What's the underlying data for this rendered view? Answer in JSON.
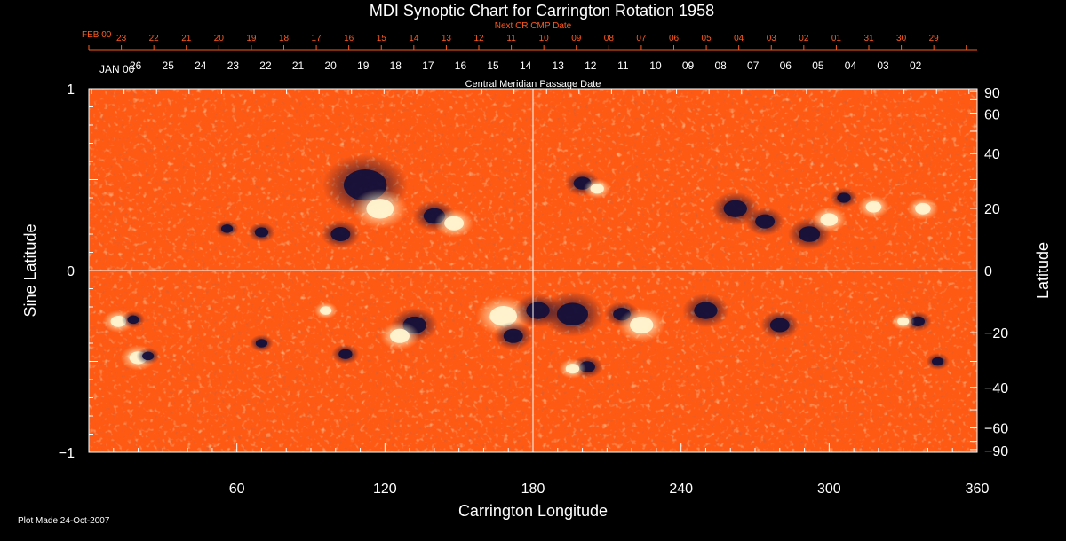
{
  "chart_data": {
    "type": "heatmap",
    "title": "MDI Synoptic Chart for Carrington Rotation 1958",
    "xlabel": "Carrington Longitude",
    "ylabel_left": "Sine Latitude",
    "ylabel_right": "Latitude",
    "xlim": [
      0,
      360
    ],
    "ylim": [
      -1,
      1
    ],
    "x_ticks": [
      60,
      120,
      180,
      240,
      300,
      360
    ],
    "y_ticks_left": [
      {
        "v": 1,
        "label": "1"
      },
      {
        "v": 0,
        "label": "0"
      },
      {
        "v": -1,
        "label": "−1"
      }
    ],
    "y_ticks_right": [
      {
        "deg": 90,
        "label": "90"
      },
      {
        "deg": 60,
        "label": "60"
      },
      {
        "deg": 40,
        "label": "40"
      },
      {
        "deg": 20,
        "label": "20"
      },
      {
        "deg": 0,
        "label": "0"
      },
      {
        "deg": -20,
        "label": "−20"
      },
      {
        "deg": -40,
        "label": "−40"
      },
      {
        "deg": -60,
        "label": "−60"
      },
      {
        "deg": -90,
        "label": "−90"
      }
    ],
    "reference_lines": {
      "longitude": 180,
      "sine_latitude": 0
    },
    "top_axis_red": {
      "title": "Next CR CMP Date",
      "start_label": "FEB 00",
      "labels": [
        "23",
        "22",
        "21",
        "20",
        "19",
        "18",
        "17",
        "16",
        "15",
        "14",
        "13",
        "12",
        "11",
        "10",
        "09",
        "08",
        "07",
        "06",
        "05",
        "04",
        "03",
        "02",
        "01",
        "31",
        "30",
        "29"
      ],
      "start_x": 0,
      "spacing": 13.17
    },
    "top_axis_white": {
      "title": "Central Meridian Passage Date",
      "start_label": "JAN 00",
      "labels": [
        "26",
        "25",
        "24",
        "23",
        "22",
        "21",
        "20",
        "19",
        "18",
        "17",
        "16",
        "15",
        "14",
        "13",
        "12",
        "11",
        "10",
        "09",
        "08",
        "07",
        "06",
        "05",
        "04",
        "03",
        "02"
      ],
      "start_x": 1.1,
      "spacing": 13.17
    },
    "active_regions": [
      {
        "lon": 112,
        "sinlat": 0.47,
        "r": 22,
        "pol": -1
      },
      {
        "lon": 118,
        "sinlat": 0.34,
        "r": 14,
        "pol": 1
      },
      {
        "lon": 102,
        "sinlat": 0.2,
        "r": 10,
        "pol": -1
      },
      {
        "lon": 140,
        "sinlat": 0.3,
        "r": 11,
        "pol": -1
      },
      {
        "lon": 148,
        "sinlat": 0.26,
        "r": 10,
        "pol": 1
      },
      {
        "lon": 56,
        "sinlat": 0.23,
        "r": 6,
        "pol": -1
      },
      {
        "lon": 70,
        "sinlat": 0.21,
        "r": 7,
        "pol": -1
      },
      {
        "lon": 200,
        "sinlat": 0.48,
        "r": 9,
        "pol": -1
      },
      {
        "lon": 206,
        "sinlat": 0.45,
        "r": 7,
        "pol": 1
      },
      {
        "lon": 262,
        "sinlat": 0.34,
        "r": 12,
        "pol": -1
      },
      {
        "lon": 274,
        "sinlat": 0.27,
        "r": 10,
        "pol": -1
      },
      {
        "lon": 292,
        "sinlat": 0.2,
        "r": 11,
        "pol": -1
      },
      {
        "lon": 300,
        "sinlat": 0.28,
        "r": 9,
        "pol": 1
      },
      {
        "lon": 306,
        "sinlat": 0.4,
        "r": 7,
        "pol": -1
      },
      {
        "lon": 318,
        "sinlat": 0.35,
        "r": 8,
        "pol": 1
      },
      {
        "lon": 338,
        "sinlat": 0.34,
        "r": 8,
        "pol": 1
      },
      {
        "lon": 168,
        "sinlat": -0.25,
        "r": 14,
        "pol": 1
      },
      {
        "lon": 172,
        "sinlat": -0.36,
        "r": 10,
        "pol": -1
      },
      {
        "lon": 182,
        "sinlat": -0.22,
        "r": 12,
        "pol": -1
      },
      {
        "lon": 196,
        "sinlat": -0.24,
        "r": 16,
        "pol": -1
      },
      {
        "lon": 216,
        "sinlat": -0.24,
        "r": 9,
        "pol": -1
      },
      {
        "lon": 224,
        "sinlat": -0.3,
        "r": 12,
        "pol": 1
      },
      {
        "lon": 132,
        "sinlat": -0.3,
        "r": 12,
        "pol": -1
      },
      {
        "lon": 126,
        "sinlat": -0.36,
        "r": 10,
        "pol": 1
      },
      {
        "lon": 104,
        "sinlat": -0.46,
        "r": 7,
        "pol": -1
      },
      {
        "lon": 96,
        "sinlat": -0.22,
        "r": 6,
        "pol": 1
      },
      {
        "lon": 12,
        "sinlat": -0.28,
        "r": 8,
        "pol": 1
      },
      {
        "lon": 18,
        "sinlat": -0.27,
        "r": 6,
        "pol": -1
      },
      {
        "lon": 20,
        "sinlat": -0.48,
        "r": 9,
        "pol": 1
      },
      {
        "lon": 24,
        "sinlat": -0.47,
        "r": 6,
        "pol": -1
      },
      {
        "lon": 70,
        "sinlat": -0.4,
        "r": 6,
        "pol": -1
      },
      {
        "lon": 202,
        "sinlat": -0.53,
        "r": 8,
        "pol": -1
      },
      {
        "lon": 196,
        "sinlat": -0.54,
        "r": 7,
        "pol": 1
      },
      {
        "lon": 250,
        "sinlat": -0.22,
        "r": 12,
        "pol": -1
      },
      {
        "lon": 280,
        "sinlat": -0.3,
        "r": 10,
        "pol": -1
      },
      {
        "lon": 336,
        "sinlat": -0.28,
        "r": 7,
        "pol": -1
      },
      {
        "lon": 330,
        "sinlat": -0.28,
        "r": 6,
        "pol": 1
      },
      {
        "lon": 344,
        "sinlat": -0.5,
        "r": 6,
        "pol": -1
      }
    ],
    "colors": {
      "background": "#ff5a14",
      "positive_flux": "#fff6d0",
      "negative_flux": "#14103a",
      "grid_line": "#ffffff",
      "top_axis_red": "#ff5a1e",
      "text": "#ffffff"
    }
  },
  "footer": {
    "plot_made": "Plot Made 24-Oct-2007"
  }
}
